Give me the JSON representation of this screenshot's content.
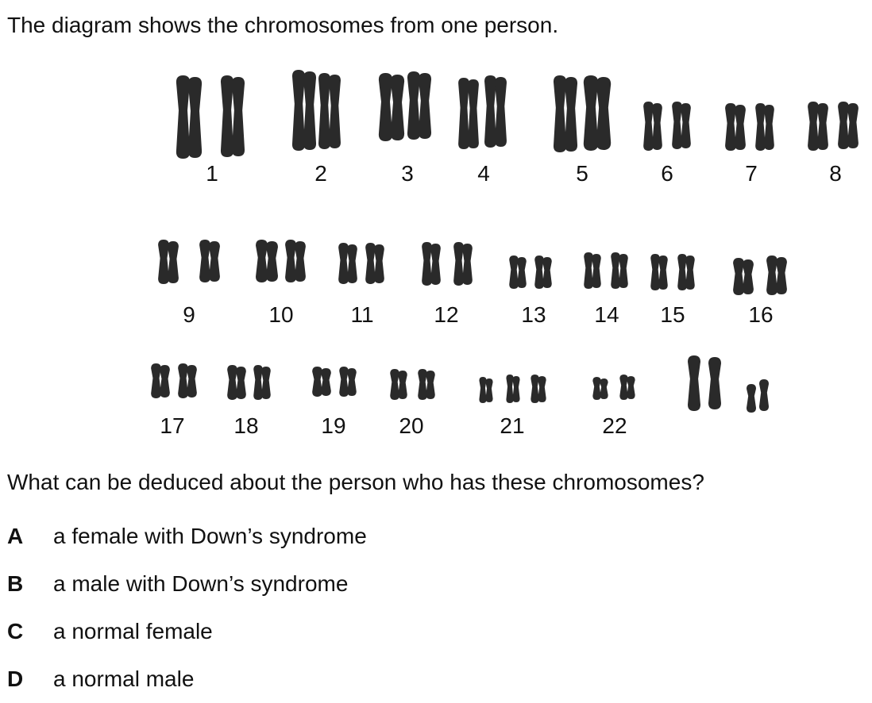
{
  "intro": "The diagram shows the chromosomes from one person.",
  "karyotype": {
    "labels": [
      "1",
      "2",
      "3",
      "4",
      "5",
      "6",
      "7",
      "8",
      "9",
      "10",
      "11",
      "12",
      "13",
      "14",
      "15",
      "16",
      "17",
      "18",
      "19",
      "20",
      "21",
      "22"
    ],
    "chromosome_color": "#2a2a2a"
  },
  "question": "What can be deduced about the person who has these chromosomes?",
  "options": [
    {
      "letter": "A",
      "text": "a female with Down’s syndrome"
    },
    {
      "letter": "B",
      "text": "a male with Down’s syndrome"
    },
    {
      "letter": "C",
      "text": "a normal female"
    },
    {
      "letter": "D",
      "text": "a normal male"
    }
  ]
}
